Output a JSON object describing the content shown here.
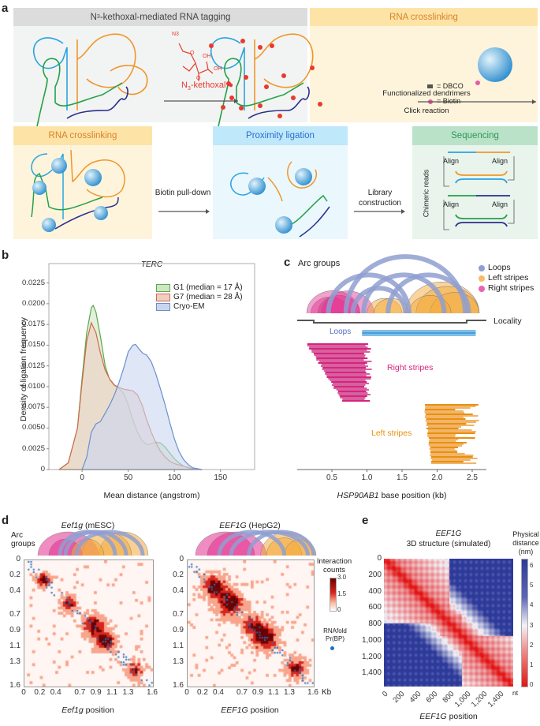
{
  "panel_a": {
    "label": "a",
    "tagging": {
      "title_prefix": "N",
      "title_sub": "3",
      "title_rest": "-kethoxal-mediated RNA tagging",
      "reagent_prefix": "N",
      "reagent_sub": "3",
      "reagent_rest": "-kethoxal",
      "struct_n3": "N3",
      "struct_oh1": "OH",
      "struct_oh2": "OH",
      "struct_o1": "O",
      "struct_o2": "O"
    },
    "crosslinking_top": {
      "title": "RNA crosslinking",
      "dbco_legend": "= DBCO",
      "biotin_legend": "= Biotin",
      "arrow_top": "Functionalized dendrimers",
      "arrow_bottom": "Click reaction"
    },
    "crosslinking_bottom": {
      "title": "RNA crosslinking"
    },
    "step1": "Biotin pull-down",
    "proximity": {
      "title": "Proximity ligation"
    },
    "step2": "Library construction",
    "sequencing": {
      "title": "Sequencing",
      "ylabel": "Chimeric reads",
      "align": "Align"
    },
    "colors": {
      "gray_header": "#dcdcdc",
      "orange_header": "#fde4a6",
      "orange_body": "#fef4dc",
      "blue_header": "#bfe8fa",
      "blue_body": "#eaf7fd",
      "green_header": "#b9e2c9",
      "green_body": "#e9f4ec",
      "tag": "#e83a2f"
    }
  },
  "panel_b": {
    "label": "b"
  },
  "chart_data": {
    "type": "area",
    "title": "TERC",
    "xlabel": "Mean distance (angstrom)",
    "ylabel": "Density of ligation frequency",
    "xlim": [
      -36,
      187
    ],
    "ylim": [
      0,
      0.0237
    ],
    "xticks": [
      "0",
      "50",
      "100",
      "150"
    ],
    "yticks": [
      "0",
      "0.0025",
      "0.0050",
      "0.0075",
      "0.0100",
      "0.0125",
      "0.0150",
      "0.0175",
      "0.0200",
      "0.0225"
    ],
    "legend_position": "top-right",
    "series": [
      {
        "name": "G1 (median = 17 Å)",
        "color": "#5aa84a",
        "fill": "#cfe6c4",
        "x": [
          -25,
          -15,
          -5,
          0,
          5,
          10,
          12,
          15,
          20,
          25,
          30,
          35,
          40,
          45,
          50,
          55,
          60,
          65,
          70,
          75,
          80,
          85,
          90,
          95,
          100,
          105,
          110,
          115,
          120
        ],
        "y": [
          0,
          0.0008,
          0.005,
          0.011,
          0.0165,
          0.0195,
          0.0198,
          0.019,
          0.016,
          0.0125,
          0.0108,
          0.0101,
          0.0098,
          0.0092,
          0.0078,
          0.006,
          0.0045,
          0.0035,
          0.003,
          0.0031,
          0.0033,
          0.0032,
          0.0027,
          0.002,
          0.0013,
          0.0008,
          0.0004,
          0.0002,
          0
        ]
      },
      {
        "name": "G7 (median = 28 Å)",
        "color": "#d06a4c",
        "fill": "#f0cfc2",
        "x": [
          -25,
          -15,
          -5,
          0,
          5,
          10,
          15,
          20,
          25,
          30,
          35,
          40,
          45,
          50,
          55,
          60,
          65,
          70,
          75,
          80,
          85,
          90,
          95,
          100,
          110,
          120,
          130
        ],
        "y": [
          0,
          0.0008,
          0.005,
          0.0105,
          0.0155,
          0.0177,
          0.0165,
          0.014,
          0.012,
          0.0109,
          0.0102,
          0.0099,
          0.0097,
          0.0096,
          0.0095,
          0.009,
          0.0078,
          0.006,
          0.0045,
          0.0032,
          0.0022,
          0.0015,
          0.001,
          0.0007,
          0.0004,
          0.0001,
          0
        ]
      },
      {
        "name": "Cryo-EM",
        "color": "#6a8fcf",
        "fill": "#c9d5ee",
        "x": [
          0,
          5,
          10,
          15,
          20,
          25,
          30,
          35,
          40,
          45,
          50,
          55,
          58,
          62,
          66,
          70,
          75,
          80,
          85,
          90,
          95,
          100,
          105,
          110,
          115,
          120,
          130
        ],
        "y": [
          0,
          0.0015,
          0.0045,
          0.0055,
          0.0058,
          0.0068,
          0.0078,
          0.009,
          0.0105,
          0.0122,
          0.0142,
          0.015,
          0.0151,
          0.0145,
          0.014,
          0.0138,
          0.013,
          0.0115,
          0.0097,
          0.0078,
          0.0057,
          0.0037,
          0.0022,
          0.0012,
          0.0006,
          0.0002,
          0
        ]
      }
    ]
  },
  "panel_c": {
    "label": "c",
    "arc_groups": "Arc groups",
    "legend": [
      {
        "label": "Loops",
        "color": "#8f9fd0"
      },
      {
        "label": "Left stripes",
        "color": "#f6bd68"
      },
      {
        "label": "Right stripes",
        "color": "#e965ad"
      }
    ],
    "locality": "Locality",
    "loops": "Loops",
    "right_stripes": "Right stripes",
    "left_stripes": "Left stripes",
    "xticks": [
      "0.5",
      "1.0",
      "1.5",
      "2.0",
      "2.5"
    ],
    "xlabel_gene": "HSP90AB1",
    "xlabel_rest": " base position (kb)",
    "colors": {
      "loops": "#4a6fbf",
      "loops_band": "#1f78c8",
      "right": "#d6247e",
      "left": "#e8900f"
    }
  },
  "panel_d": {
    "label": "d",
    "arc_groups": "Arc groups",
    "left": {
      "title_gene": "Eef1g",
      "title_rest": " (mESC)",
      "xlabel_gene": "Eef1g",
      "xlabel_rest": " position"
    },
    "right": {
      "title_gene": "EEF1G",
      "title_rest": " (HepG2)",
      "xlabel_gene": "EEF1G",
      "xlabel_rest": " position"
    },
    "ticks": [
      "0",
      "0.2",
      "0.4",
      "0.7",
      "0.9",
      "1.1",
      "1.3",
      "1.6"
    ],
    "unit": "Kb",
    "colorbar": {
      "title": "Interaction counts",
      "ticks": [
        "3.0",
        "1.5",
        "0"
      ],
      "max": 3.0,
      "min": 0
    },
    "rnafold": {
      "label1": "RNAfold",
      "label2": "Pr(BP)",
      "color": "#1f6fc0"
    }
  },
  "panel_e": {
    "label": "e",
    "title_gene": "EEF1G",
    "title_sub": "3D structure (simulated)",
    "yticks": [
      "0",
      "200",
      "400",
      "600",
      "800",
      "1,000",
      "1,200",
      "1,400"
    ],
    "xticks": [
      "0",
      "200",
      "400",
      "600",
      "800",
      "1,000",
      "1,200",
      "1,400"
    ],
    "unit": "nt",
    "xlabel_gene": "EEF1G",
    "xlabel_rest": " position",
    "colorbar": {
      "title1": "Physical",
      "title2": "distance",
      "title3": "(nm)",
      "ticks": [
        "6",
        "5",
        "4",
        "3",
        "2",
        "1",
        "0"
      ],
      "min": 0,
      "max": 6.4
    }
  }
}
